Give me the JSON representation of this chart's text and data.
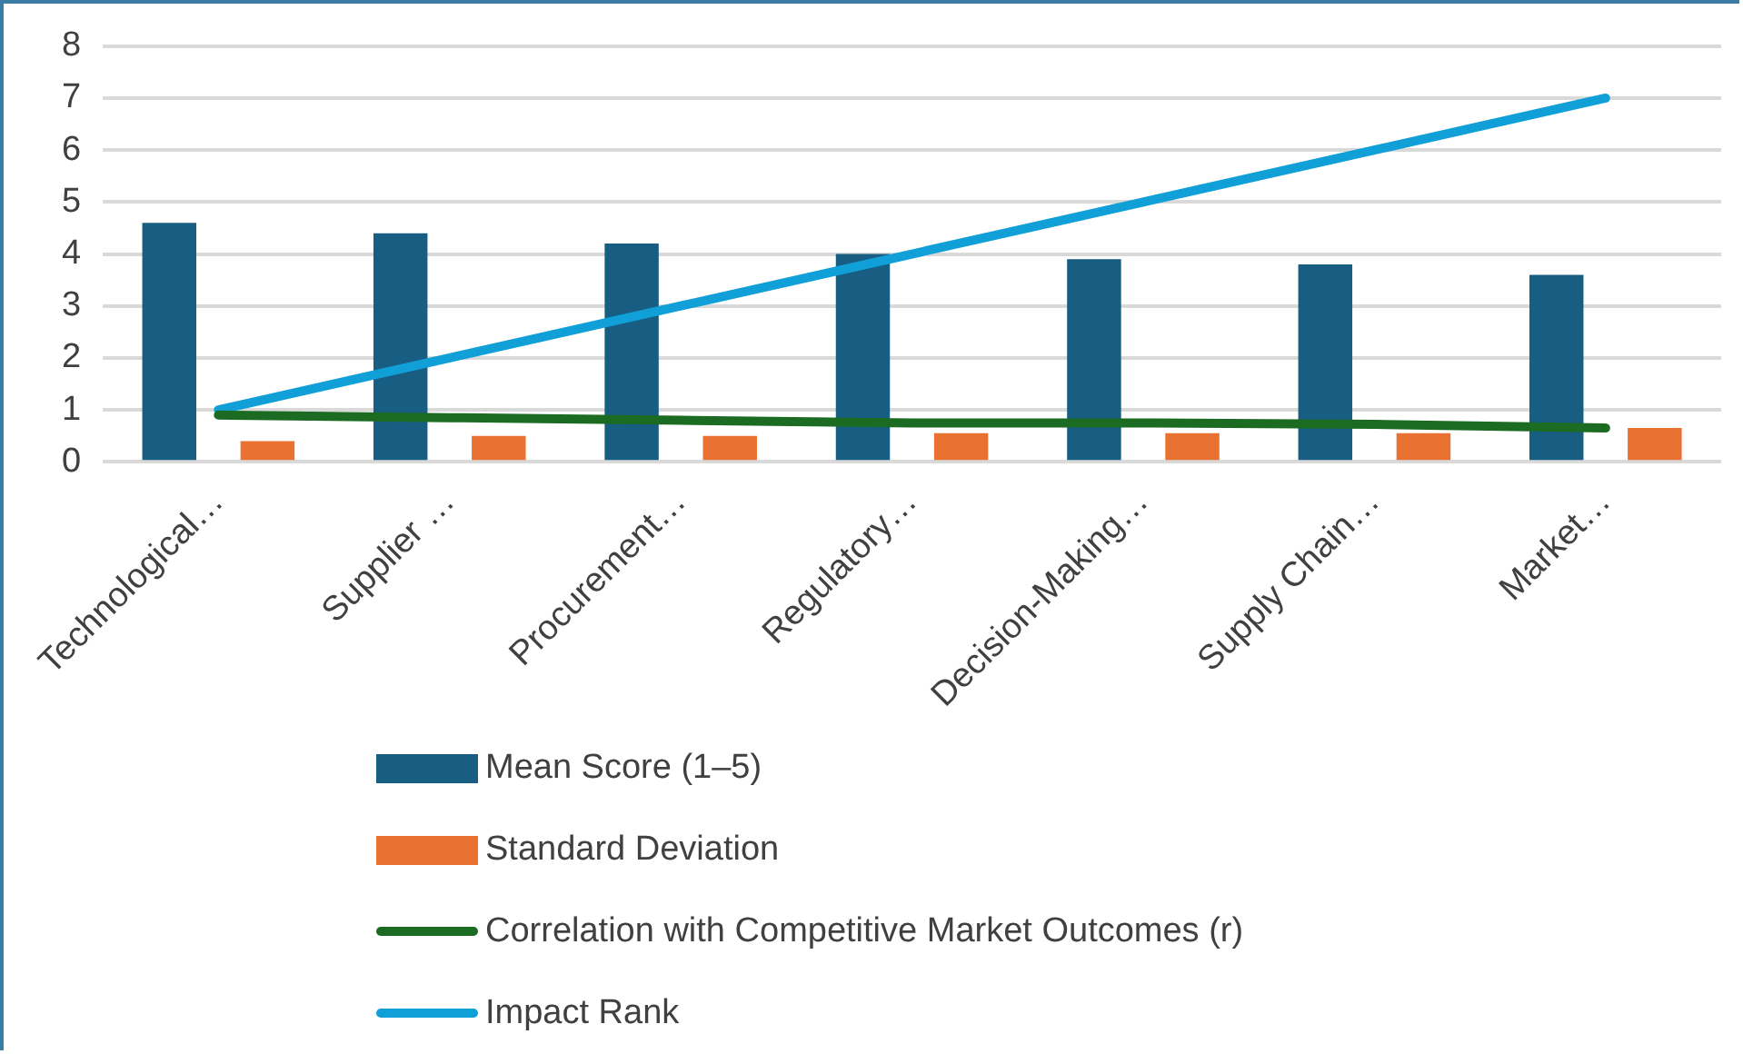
{
  "chart_data": {
    "type": "bar",
    "categories": [
      "Technological…",
      "Supplier …",
      "Procurement…",
      "Regulatory…",
      "Decision-Making…",
      "Supply Chain…",
      "Market…"
    ],
    "series": [
      {
        "name": "Mean Score (1–5)",
        "color": "#175e82",
        "values": [
          4.6,
          4.4,
          4.2,
          4.0,
          3.9,
          3.8,
          3.6
        ]
      },
      {
        "name": "Standard Deviation",
        "color": "#e97132",
        "values": [
          0.4,
          0.5,
          0.5,
          0.55,
          0.55,
          0.55,
          0.65
        ]
      },
      {
        "name": "Correlation with Competitive Market Outcomes (r)",
        "type": "line",
        "color": "#1b6b23",
        "values": [
          0.9,
          0.85,
          0.8,
          0.75,
          0.75,
          0.72,
          0.65
        ]
      },
      {
        "name": "Impact Rank",
        "type": "line",
        "color": "#119fd8",
        "values": [
          1,
          2,
          3,
          4,
          5,
          6,
          7
        ]
      }
    ],
    "ylim": [
      0,
      8
    ],
    "yticks": [
      0,
      1,
      2,
      3,
      4,
      5,
      6,
      7,
      8
    ],
    "grid": "y",
    "legend": "bottom",
    "marker": "none"
  }
}
